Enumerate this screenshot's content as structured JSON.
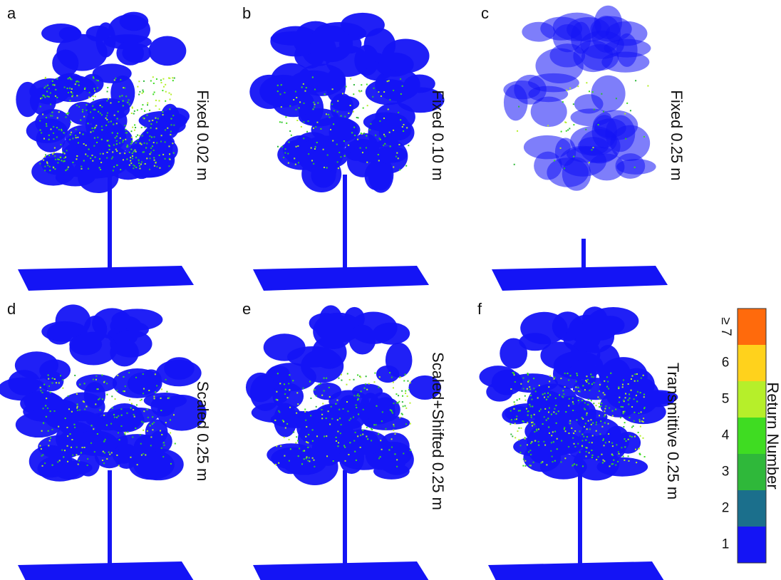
{
  "panels": [
    {
      "letter": "a",
      "caption": "Fixed 0.02 m"
    },
    {
      "letter": "b",
      "caption": "Fixed 0.10 m"
    },
    {
      "letter": "c",
      "caption": "Fixed 0.25 m"
    },
    {
      "letter": "d",
      "caption": "Scaled 0.25 m"
    },
    {
      "letter": "e",
      "caption": "Scaled+Shifted 0.25 m"
    },
    {
      "letter": "f",
      "caption": "Transmittive 0.25 m"
    }
  ],
  "colorbar": {
    "title": "Return Number",
    "levels": [
      {
        "label": "1",
        "color": "#1414f5"
      },
      {
        "label": "2",
        "color": "#1b6f8c"
      },
      {
        "label": "3",
        "color": "#2fb83a"
      },
      {
        "label": "4",
        "color": "#3fdc22"
      },
      {
        "label": "5",
        "color": "#b6ef2a"
      },
      {
        "label": "6",
        "color": "#ffd21c"
      },
      {
        "label": "≥ 7",
        "color": "#ff6a0c"
      }
    ]
  }
}
